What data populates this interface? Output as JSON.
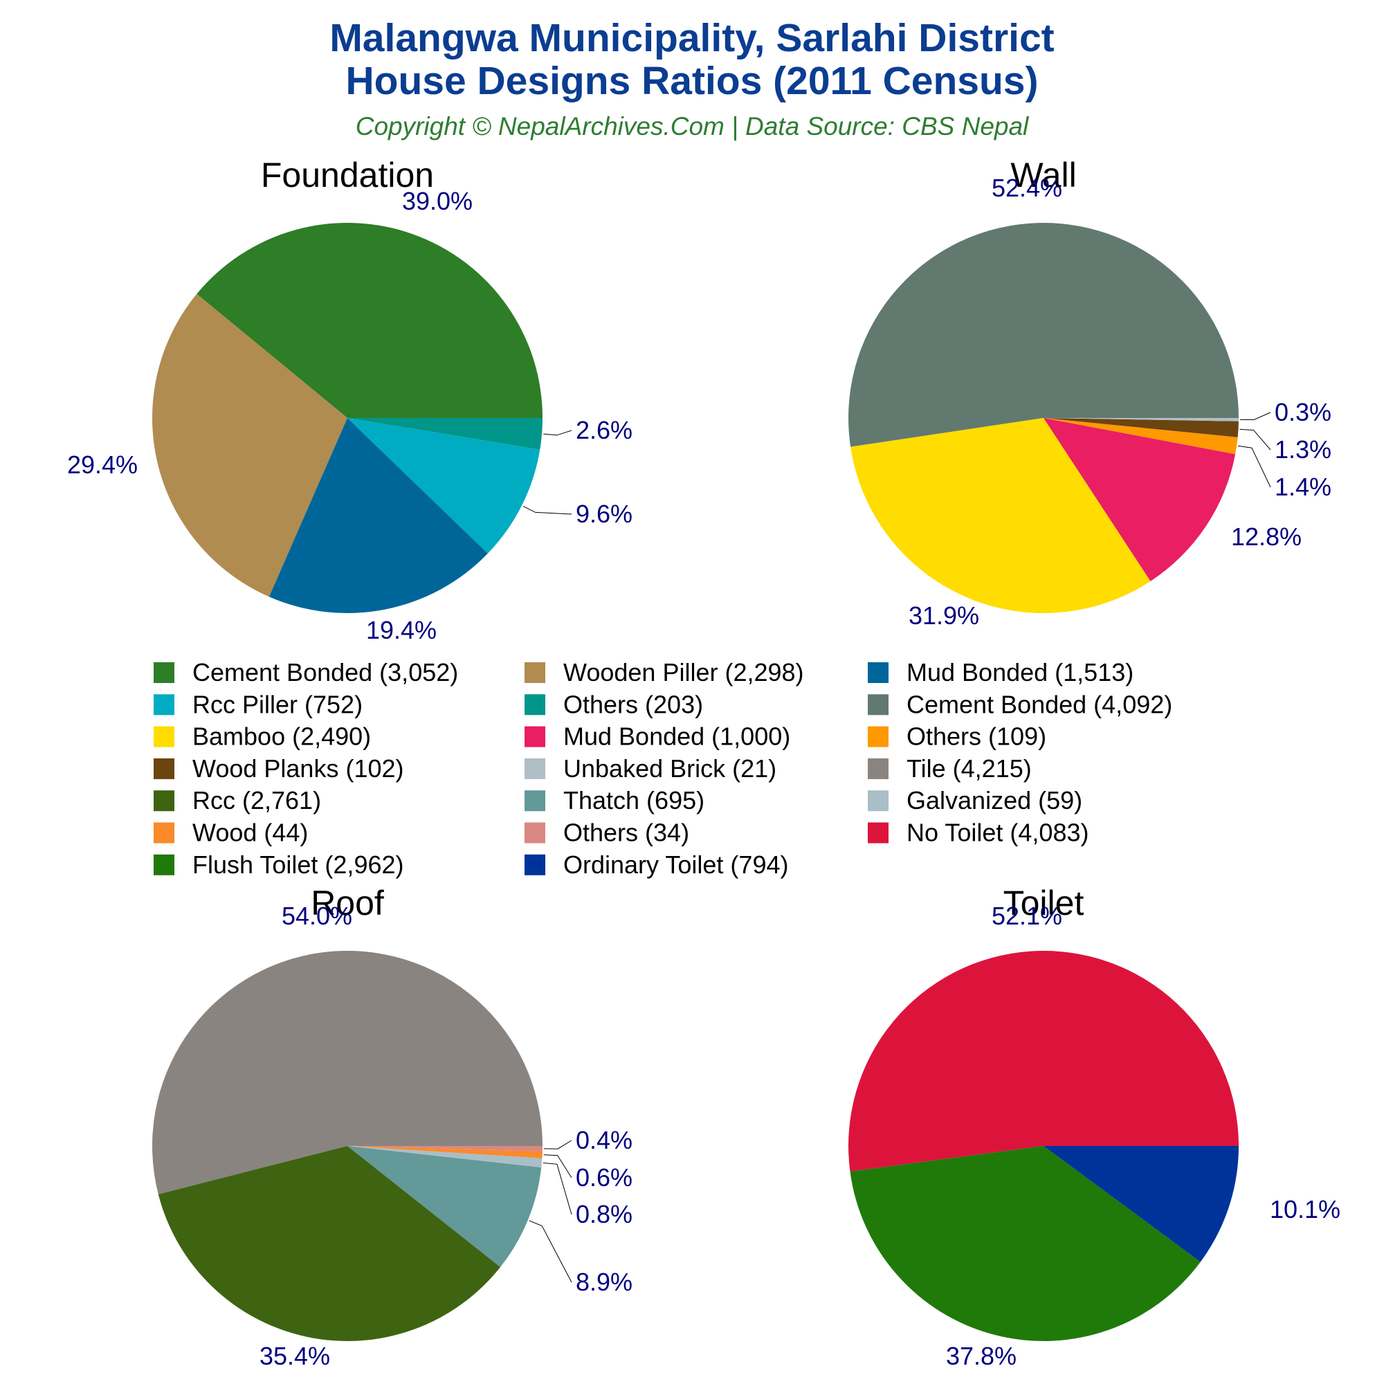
{
  "title_line1": "Malangwa Municipality, Sarlahi District",
  "title_line2": "House Designs Ratios (2011 Census)",
  "subtitle": "Copyright © NepalArchives.Com | Data Source: CBS Nepal",
  "chart_data": [
    {
      "type": "pie",
      "title": "Foundation",
      "labels": [
        "Cement Bonded",
        "Wooden Piller",
        "Mud Bonded",
        "Rcc Piller",
        "Others"
      ],
      "values": [
        3052,
        2298,
        1513,
        752,
        203
      ],
      "percent_labels": [
        "39.0%",
        "29.4%",
        "19.4%",
        "9.6%",
        "2.6%"
      ],
      "colors": [
        "#2e7d27",
        "#b08c50",
        "#006699",
        "#00acc1",
        "#00968a"
      ]
    },
    {
      "type": "pie",
      "title": "Wall",
      "labels": [
        "Cement Bonded",
        "Bamboo",
        "Mud Bonded",
        "Others",
        "Wood Planks",
        "Unbaked Brick"
      ],
      "values": [
        4092,
        2490,
        1000,
        109,
        102,
        21
      ],
      "percent_labels": [
        "52.4%",
        "31.9%",
        "12.8%",
        "1.4%",
        "1.3%",
        "0.3%"
      ],
      "colors": [
        "#627970",
        "#ffdd00",
        "#e91e63",
        "#ff9900",
        "#6b4410",
        "#b0bec5"
      ]
    },
    {
      "type": "pie",
      "title": "Roof",
      "labels": [
        "Tile",
        "Rcc",
        "Thatch",
        "Galvanized",
        "Wood",
        "Others"
      ],
      "values": [
        4215,
        2761,
        695,
        59,
        44,
        34
      ],
      "percent_labels": [
        "54.0%",
        "35.4%",
        "8.9%",
        "0.8%",
        "0.6%",
        "0.4%"
      ],
      "colors": [
        "#8a8480",
        "#3e6411",
        "#639999",
        "#aabec8",
        "#fb8a2a",
        "#d98883"
      ]
    },
    {
      "type": "pie",
      "title": "Toilet",
      "labels": [
        "No Toilet",
        "Flush Toilet",
        "Ordinary Toilet"
      ],
      "values": [
        4083,
        2962,
        794
      ],
      "percent_labels": [
        "52.1%",
        "37.8%",
        "10.1%"
      ],
      "colors": [
        "#dc143c",
        "#1f7a0a",
        "#003399"
      ]
    }
  ],
  "legend": [
    {
      "label": "Cement Bonded (3,052)",
      "color": "#2e7d27"
    },
    {
      "label": "Wooden Piller (2,298)",
      "color": "#b08c50"
    },
    {
      "label": "Mud Bonded (1,513)",
      "color": "#006699"
    },
    {
      "label": "Rcc Piller (752)",
      "color": "#00acc1"
    },
    {
      "label": "Others (203)",
      "color": "#00968a"
    },
    {
      "label": "Cement Bonded (4,092)",
      "color": "#627970"
    },
    {
      "label": "Bamboo (2,490)",
      "color": "#ffdd00"
    },
    {
      "label": "Mud Bonded (1,000)",
      "color": "#e91e63"
    },
    {
      "label": "Others (109)",
      "color": "#ff9900"
    },
    {
      "label": "Wood Planks (102)",
      "color": "#6b4410"
    },
    {
      "label": "Unbaked Brick (21)",
      "color": "#b0bec5"
    },
    {
      "label": "Tile (4,215)",
      "color": "#8a8480"
    },
    {
      "label": "Rcc (2,761)",
      "color": "#3e6411"
    },
    {
      "label": "Thatch (695)",
      "color": "#639999"
    },
    {
      "label": "Galvanized (59)",
      "color": "#aabec8"
    },
    {
      "label": "Wood (44)",
      "color": "#fb8a2a"
    },
    {
      "label": "Others (34)",
      "color": "#d98883"
    },
    {
      "label": "No Toilet (4,083)",
      "color": "#dc143c"
    },
    {
      "label": "Flush Toilet (2,962)",
      "color": "#1f7a0a"
    },
    {
      "label": "Ordinary Toilet (794)",
      "color": "#003399"
    }
  ]
}
